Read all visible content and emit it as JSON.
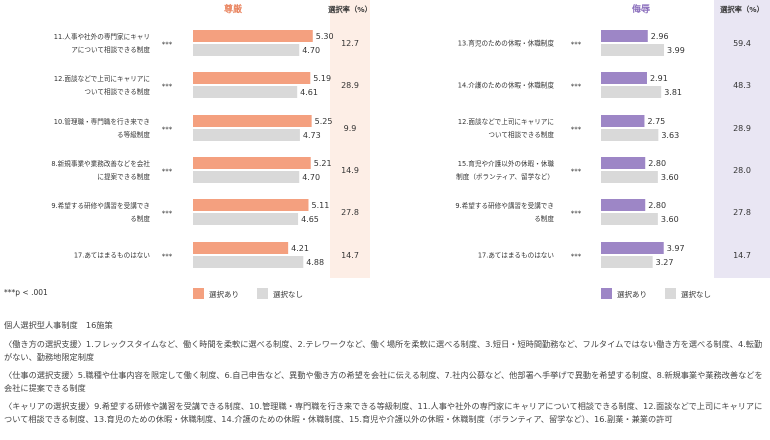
{
  "chart_data": [
    {
      "type": "bar",
      "title": "尊厳",
      "rate_header": "選択率（%）",
      "significance": "***",
      "categories": [
        "11.人事や社外の専門家にキャリアについて相談できる制度",
        "12.面談などで上司にキャリアについて相談できる制度",
        "10.管理職・専門職を行き来できる等級制度",
        "8.新規事業や業務改善などを会社に提案できる制度",
        "9.希望する研修や講習を受講できる制度",
        "17.あてはまるものはない"
      ],
      "series": [
        {
          "name": "選択あり",
          "values": [
            5.3,
            5.19,
            5.25,
            5.21,
            5.11,
            4.21
          ]
        },
        {
          "name": "選択なし",
          "values": [
            4.7,
            4.61,
            4.73,
            4.7,
            4.65,
            4.88
          ]
        }
      ],
      "selection_rates": [
        "12.7",
        "28.9",
        "9.9",
        "14.9",
        "27.8",
        "14.7"
      ],
      "colors": {
        "selected": "#f4a07f",
        "not_selected": "#d9d9d9",
        "rate_bg": "#fdeee6",
        "title": "#e9845f"
      }
    },
    {
      "type": "bar",
      "title": "侮辱",
      "rate_header": "選択率（%）",
      "significance": "***",
      "categories": [
        "13.育児のための休暇・休職制度",
        "14.介護のための休暇・休職制度",
        "12.面談などで上司にキャリアについて相談できる制度",
        "15.育児や介護以外の休暇・休職制度（ボランティア、留学など）",
        "9.希望する研修や講習を受講できる制度",
        "17.あてはまるものはない"
      ],
      "series": [
        {
          "name": "選択あり",
          "values": [
            2.96,
            2.91,
            2.75,
            2.8,
            2.8,
            3.97
          ]
        },
        {
          "name": "選択なし",
          "values": [
            3.99,
            3.81,
            3.63,
            3.6,
            3.6,
            3.27
          ]
        }
      ],
      "selection_rates": [
        "59.4",
        "48.3",
        "28.9",
        "28.0",
        "27.8",
        "14.7"
      ],
      "colors": {
        "selected": "#9d86c6",
        "not_selected": "#d9d9d9",
        "rate_bg": "#e9e6f3",
        "title": "#8b6fbd"
      }
    }
  ],
  "footnote": "***p < .001",
  "notes": {
    "title": "個人選択型人事制度　16施策",
    "paragraphs": [
      "〈働き方の選択支援〉1.フレックスタイムなど、働く時間を柔軟に選べる制度、2.テレワークなど、働く場所を柔軟に選べる制度、3.短日・短時間勤務など、フルタイムではない働き方を選べる制度、4.転勤がない、勤務地限定制度",
      "〈仕事の選択支援〉5.職種や仕事内容を限定して働く制度、6.自己申告など、異動や働き方の希望を会社に伝える制度、7.社内公募など、他部署へ手挙げで異動を希望する制度、8.新規事業や業務改善などを会社に提案できる制度",
      "〈キャリアの選択支援〉9.希望する研修や講習を受講できる制度、10.管理職・専門職を行き来できる等級制度、11.人事や社外の専門家にキャリアについて相談できる制度、12.面談などで上司にキャリアについて相談できる制度、13.育児のための休暇・休職制度、14.介護のための休暇・休職制度、15.育児や介護以外の休暇・休職制度（ボランティア、留学など）、16.副業・兼業の許可"
    ]
  }
}
